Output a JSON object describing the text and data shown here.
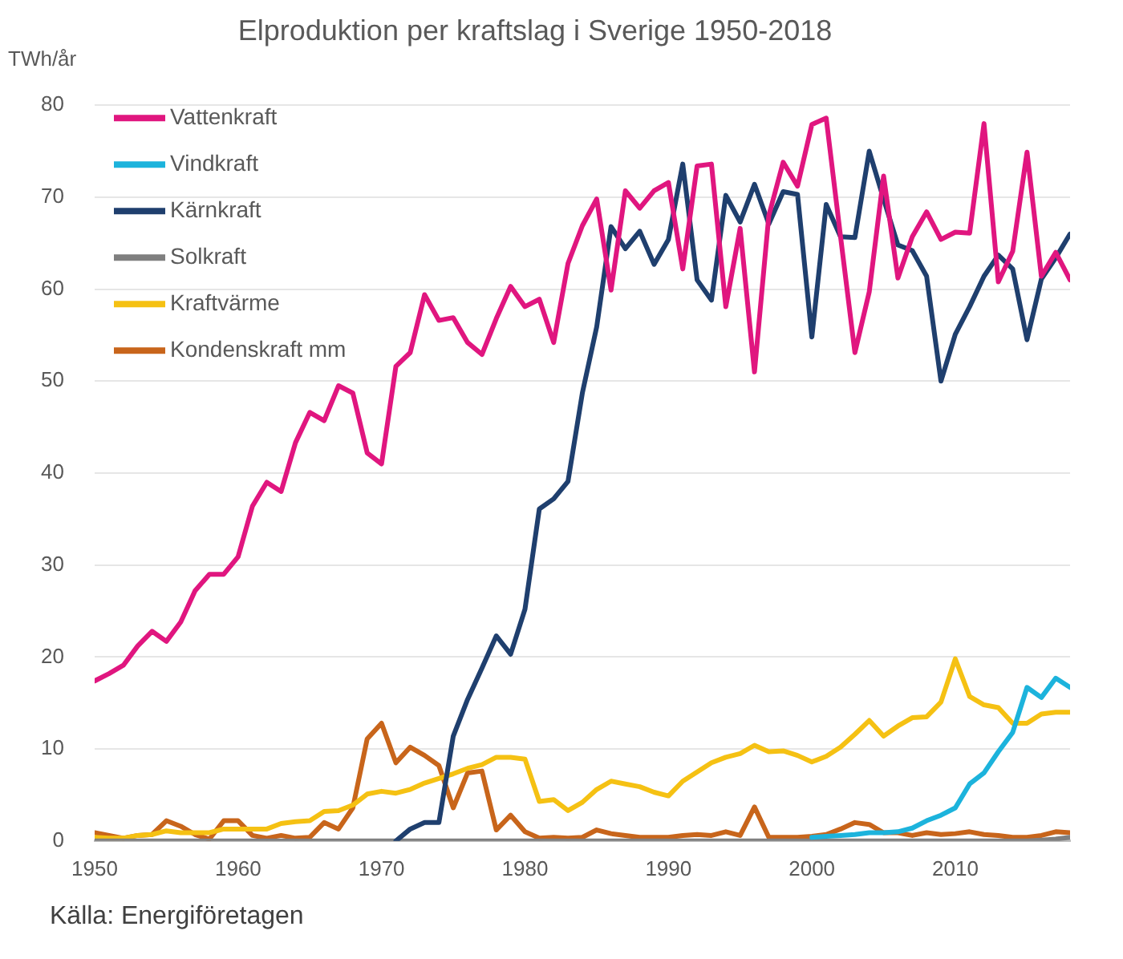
{
  "chart_data": {
    "type": "line",
    "title": "Elproduktion per kraftslag i Sverige 1950-2018",
    "ylabel": "TWh/år",
    "annotations": [
      "Källa: Energiföretagen"
    ],
    "x": [
      1950,
      1951,
      1952,
      1953,
      1954,
      1955,
      1956,
      1957,
      1958,
      1959,
      1960,
      1961,
      1962,
      1963,
      1964,
      1965,
      1966,
      1967,
      1968,
      1969,
      1970,
      1971,
      1972,
      1973,
      1974,
      1975,
      1976,
      1977,
      1978,
      1979,
      1980,
      1981,
      1982,
      1983,
      1984,
      1985,
      1986,
      1987,
      1988,
      1989,
      1990,
      1991,
      1992,
      1993,
      1994,
      1995,
      1996,
      1997,
      1998,
      1999,
      2000,
      2001,
      2002,
      2003,
      2004,
      2005,
      2006,
      2007,
      2008,
      2009,
      2010,
      2011,
      2012,
      2013,
      2014,
      2015,
      2016,
      2017,
      2018
    ],
    "series": [
      {
        "name": "Vattenkraft",
        "color": "#e0167f",
        "values": [
          17.4,
          18.2,
          19.1,
          21.2,
          22.8,
          21.7,
          23.8,
          27.2,
          29.0,
          29.0,
          30.9,
          36.4,
          39.0,
          38.0,
          43.3,
          46.6,
          45.7,
          49.5,
          48.7,
          42.2,
          41.0,
          51.6,
          53.1,
          59.4,
          56.6,
          56.9,
          54.2,
          52.9,
          56.8,
          60.3,
          58.1,
          58.9,
          54.2,
          62.8,
          66.9,
          69.8,
          59.9,
          70.7,
          68.8,
          70.7,
          71.6,
          62.2,
          73.4,
          73.6,
          58.1,
          66.6,
          51.0,
          68.0,
          73.8,
          71.2,
          77.9,
          78.6,
          65.7,
          53.1,
          59.7,
          72.3,
          61.2,
          65.7,
          68.4,
          65.4,
          66.2,
          66.1,
          78.0,
          60.8,
          64.1,
          74.9,
          61.4,
          64.0,
          61.0
        ]
      },
      {
        "name": "Vindkraft",
        "color": "#1cb3dc",
        "values": [
          null,
          null,
          null,
          null,
          null,
          null,
          null,
          null,
          null,
          null,
          null,
          null,
          null,
          null,
          null,
          null,
          null,
          null,
          null,
          null,
          null,
          null,
          null,
          null,
          null,
          null,
          null,
          null,
          null,
          null,
          null,
          null,
          null,
          null,
          null,
          null,
          null,
          null,
          null,
          null,
          null,
          null,
          null,
          null,
          null,
          null,
          null,
          null,
          null,
          null,
          0.4,
          0.5,
          0.6,
          0.7,
          0.9,
          0.9,
          1.0,
          1.4,
          2.2,
          2.8,
          3.6,
          6.2,
          7.4,
          9.7,
          11.8,
          16.7,
          15.6,
          17.7,
          16.7
        ]
      },
      {
        "name": "Kärnkraft",
        "color": "#1f3f6e",
        "values": [
          null,
          null,
          null,
          null,
          null,
          null,
          null,
          null,
          null,
          null,
          null,
          null,
          null,
          null,
          null,
          null,
          null,
          null,
          null,
          null,
          null,
          0.0,
          1.3,
          2.0,
          2.0,
          11.4,
          15.4,
          18.8,
          22.3,
          20.3,
          25.2,
          36.1,
          37.2,
          39.1,
          48.7,
          55.9,
          66.8,
          64.4,
          66.3,
          62.7,
          65.4,
          73.6,
          61.0,
          58.8,
          70.2,
          67.3,
          71.4,
          67.1,
          70.6,
          70.3,
          54.8,
          69.2,
          65.7,
          65.6,
          75.0,
          69.8,
          64.8,
          64.2,
          61.4,
          50.0,
          55.1,
          58.1,
          61.4,
          63.7,
          62.2,
          54.5,
          61.1,
          63.4,
          66.0
        ]
      },
      {
        "name": "Solkraft",
        "color": "#7f7f7f",
        "values": [
          0,
          0,
          0,
          0,
          0,
          0,
          0,
          0,
          0,
          0,
          0,
          0,
          0,
          0,
          0,
          0,
          0,
          0,
          0,
          0,
          0,
          0,
          0,
          0,
          0,
          0,
          0,
          0,
          0,
          0,
          0,
          0,
          0,
          0,
          0,
          0,
          0,
          0,
          0,
          0,
          0,
          0,
          0,
          0,
          0,
          0,
          0,
          0,
          0,
          0,
          0,
          0,
          0,
          0,
          0,
          0,
          0,
          0,
          0,
          0,
          0,
          0,
          0,
          0,
          0,
          0,
          0.1,
          0.2,
          0.4
        ]
      },
      {
        "name": "Kraftvärme",
        "color": "#f5c113",
        "values": [
          0.4,
          0.3,
          0.3,
          0.6,
          0.7,
          1.1,
          0.9,
          0.9,
          0.9,
          1.3,
          1.3,
          1.3,
          1.3,
          1.9,
          2.1,
          2.2,
          3.2,
          3.3,
          3.9,
          5.1,
          5.4,
          5.2,
          5.6,
          6.3,
          6.8,
          7.3,
          7.9,
          8.3,
          9.1,
          9.1,
          8.9,
          4.3,
          4.5,
          3.3,
          4.2,
          5.6,
          6.5,
          6.2,
          5.9,
          5.3,
          4.9,
          6.5,
          7.5,
          8.5,
          9.1,
          9.5,
          10.4,
          9.7,
          9.8,
          9.3,
          8.6,
          9.2,
          10.2,
          11.6,
          13.1,
          11.4,
          12.5,
          13.4,
          13.5,
          15.1,
          19.8,
          15.7,
          14.8,
          14.5,
          12.8,
          12.8,
          13.8,
          14.0,
          14.0
        ]
      },
      {
        "name": "Kondenskraft mm",
        "color": "#c8651b",
        "values": [
          0.9,
          0.6,
          0.3,
          0.6,
          0.7,
          2.2,
          1.6,
          0.7,
          0.2,
          2.2,
          2.2,
          0.6,
          0.3,
          0.6,
          0.3,
          0.4,
          2.0,
          1.3,
          3.6,
          11.1,
          12.8,
          8.5,
          10.2,
          9.3,
          8.2,
          3.6,
          7.4,
          7.6,
          1.2,
          2.8,
          1.0,
          0.3,
          0.4,
          0.3,
          0.4,
          1.2,
          0.8,
          0.6,
          0.4,
          0.4,
          0.4,
          0.6,
          0.7,
          0.6,
          1.0,
          0.6,
          3.7,
          0.4,
          0.4,
          0.4,
          0.5,
          0.7,
          1.3,
          2.0,
          1.8,
          0.9,
          0.9,
          0.6,
          0.9,
          0.7,
          0.8,
          1.0,
          0.7,
          0.6,
          0.4,
          0.4,
          0.6,
          1.0,
          0.9
        ]
      }
    ],
    "xlim": [
      1950,
      2018
    ],
    "xticks": [
      1950,
      1960,
      1970,
      1980,
      1990,
      2000,
      2010
    ],
    "ylim": [
      0,
      80
    ],
    "yticks": [
      0,
      10,
      20,
      30,
      40,
      50,
      60,
      70,
      80
    ],
    "grid": "y",
    "legend": "top left",
    "marker": "none",
    "line_style": "solid"
  }
}
